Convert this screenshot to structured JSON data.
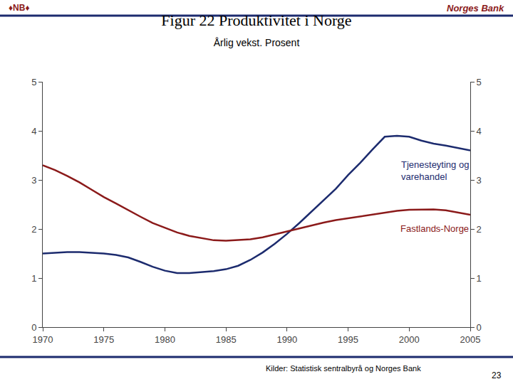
{
  "chart_data": {
    "type": "line",
    "title": "Figur 22 Produktivitet i Norge",
    "subtitle": "Årlig vekst. Prosent",
    "annotations": [
      "♦NB♦",
      "Norges Bank",
      "Kilder: Statistisk sentralbyrå og Norges Bank",
      "23"
    ],
    "x": [
      1970,
      1971,
      1972,
      1973,
      1974,
      1975,
      1976,
      1977,
      1978,
      1979,
      1980,
      1981,
      1982,
      1983,
      1984,
      1985,
      1986,
      1987,
      1988,
      1989,
      1990,
      1991,
      1992,
      1993,
      1994,
      1995,
      1996,
      1997,
      1998,
      1999,
      2000,
      2001,
      2002,
      2003,
      2004,
      2005
    ],
    "series": [
      {
        "name": "Tjenesteyting og varehandel",
        "color": "#1c2b6e",
        "values": [
          1.5,
          1.52,
          1.53,
          1.53,
          1.52,
          1.5,
          1.47,
          1.42,
          1.33,
          1.23,
          1.15,
          1.1,
          1.1,
          1.12,
          1.14,
          1.18,
          1.25,
          1.37,
          1.52,
          1.7,
          1.9,
          2.12,
          2.35,
          2.58,
          2.82,
          3.1,
          3.35,
          3.62,
          3.88,
          3.9,
          3.88,
          3.8,
          3.74,
          3.7,
          3.65,
          3.6
        ]
      },
      {
        "name": "Fastlands-Norge",
        "color": "#8b1a1a",
        "values": [
          3.3,
          3.2,
          3.08,
          2.95,
          2.8,
          2.65,
          2.52,
          2.38,
          2.25,
          2.12,
          2.02,
          1.93,
          1.86,
          1.81,
          1.77,
          1.76,
          1.77,
          1.79,
          1.83,
          1.89,
          1.96,
          2.02,
          2.08,
          2.13,
          2.18,
          2.22,
          2.26,
          2.3,
          2.34,
          2.37,
          2.39,
          2.4,
          2.4,
          2.38,
          2.34,
          2.29
        ]
      }
    ],
    "xlim": [
      1970,
      2005
    ],
    "xticks": [
      1970,
      1975,
      1980,
      1985,
      1990,
      1995,
      2000,
      2005
    ],
    "ylim": [
      0,
      5
    ],
    "yticks": [
      0,
      1,
      2,
      3,
      4,
      5
    ],
    "y2lim": [
      0,
      5
    ],
    "y2ticks": [
      0,
      1,
      2,
      3,
      4,
      5
    ],
    "grid": false
  }
}
